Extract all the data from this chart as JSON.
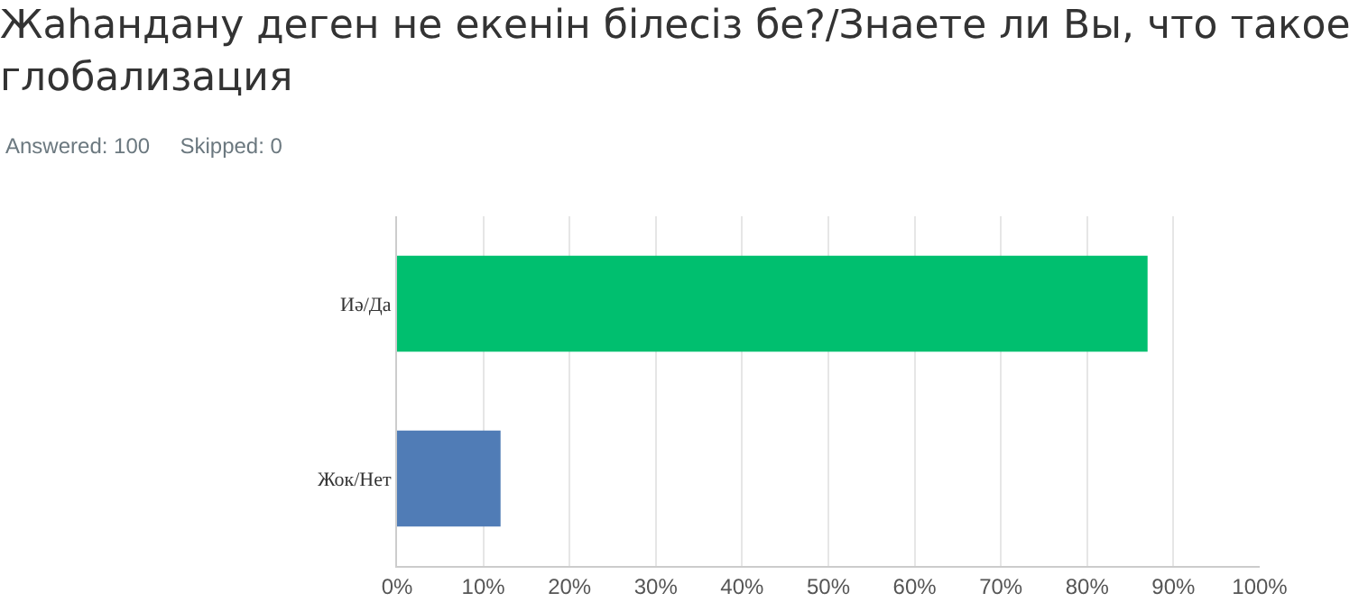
{
  "chart_data": {
    "type": "bar",
    "orientation": "horizontal",
    "title": "Жаһандану деген не екенін білесіз бе?/Знаете ли Вы, что такое глобализация",
    "subtitle": "Answered: 100     Skipped: 0",
    "categories": [
      "Иә/Да",
      "Жок/Нет"
    ],
    "values": [
      87,
      12
    ],
    "colors": [
      "#00bf6f",
      "#507cb6"
    ],
    "xlim": [
      0,
      100
    ],
    "xticks": [
      {
        "value": 0,
        "label": "0%"
      },
      {
        "value": 10,
        "label": "10%"
      },
      {
        "value": 20,
        "label": "20%"
      },
      {
        "value": 30,
        "label": "30%"
      },
      {
        "value": 40,
        "label": "40%"
      },
      {
        "value": 50,
        "label": "50%"
      },
      {
        "value": 60,
        "label": "60%"
      },
      {
        "value": 70,
        "label": "70%"
      },
      {
        "value": 80,
        "label": "80%"
      },
      {
        "value": 90,
        "label": "90%"
      },
      {
        "value": 100,
        "label": "100%"
      }
    ],
    "grid": "x"
  }
}
